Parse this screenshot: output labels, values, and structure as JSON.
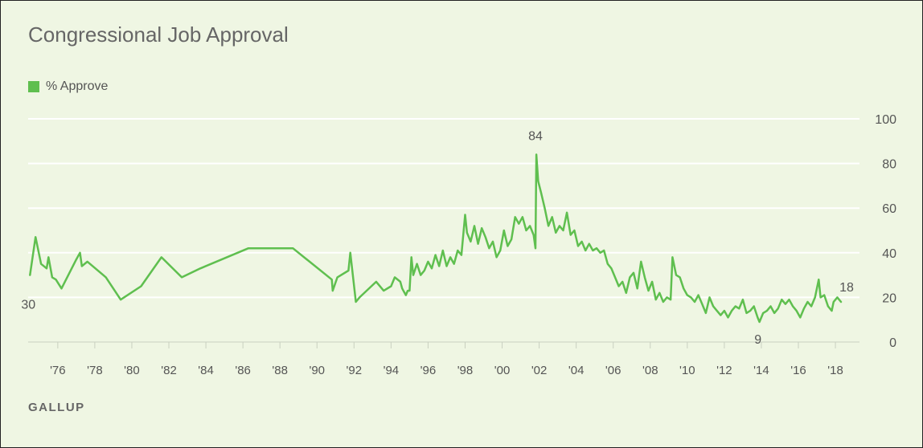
{
  "title": "Congressional Job Approval",
  "footer": "GALLUP",
  "colors": {
    "line": "#5fbf4f",
    "grid": "#ffffff",
    "text": "#555555",
    "background": "#eff6e3"
  },
  "chart_data": {
    "type": "line",
    "title": "Congressional Job Approval",
    "xlabel": "",
    "ylabel": "",
    "ylim": [
      0,
      100
    ],
    "xlim": [
      1974.4,
      2019.3
    ],
    "grid": true,
    "legend_position": "top-left",
    "y_ticks": [
      0,
      20,
      40,
      60,
      80,
      100
    ],
    "y_tick_labels": [
      "0",
      "20",
      "40",
      "60",
      "80",
      "100"
    ],
    "x_ticks": [
      1976,
      1978,
      1980,
      1982,
      1984,
      1986,
      1988,
      1990,
      1992,
      1994,
      1996,
      1998,
      2000,
      2002,
      2004,
      2006,
      2008,
      2010,
      2012,
      2014,
      2016,
      2018
    ],
    "x_tick_labels": [
      "'76",
      "'78",
      "'80",
      "'82",
      "'84",
      "'86",
      "'88",
      "'90",
      "'92",
      "'94",
      "'96",
      "'98",
      "'00",
      "'02",
      "'04",
      "'06",
      "'08",
      "'10",
      "'12",
      "'14",
      "'16",
      "'18"
    ],
    "series": [
      {
        "name": "% Approve",
        "color": "#5fbf4f",
        "x": [
          1974.5,
          1974.8,
          1975.1,
          1975.4,
          1975.5,
          1975.7,
          1975.9,
          1976.2,
          1977.0,
          1977.2,
          1977.3,
          1977.6,
          1978.6,
          1979.4,
          1980.5,
          1981.6,
          1982.7,
          1983.7,
          1986.3,
          1988.7,
          1990.8,
          1990.85,
          1991.1,
          1991.7,
          1991.8,
          1992.1,
          1992.3,
          1993.2,
          1993.6,
          1994.0,
          1994.2,
          1994.5,
          1994.6,
          1994.8,
          1994.9,
          1995.0,
          1995.1,
          1995.2,
          1995.4,
          1995.6,
          1995.8,
          1996.0,
          1996.2,
          1996.4,
          1996.6,
          1996.8,
          1997.0,
          1997.2,
          1997.4,
          1997.6,
          1997.8,
          1998.0,
          1998.1,
          1998.3,
          1998.5,
          1998.7,
          1998.9,
          1999.1,
          1999.3,
          1999.5,
          1999.7,
          1999.9,
          2000.1,
          2000.3,
          2000.5,
          2000.7,
          2000.9,
          2001.1,
          2001.3,
          2001.5,
          2001.7,
          2001.8,
          2001.85,
          2001.95,
          2002.1,
          2002.3,
          2002.5,
          2002.7,
          2002.9,
          2003.1,
          2003.3,
          2003.5,
          2003.7,
          2003.9,
          2004.1,
          2004.3,
          2004.5,
          2004.7,
          2004.9,
          2005.1,
          2005.3,
          2005.5,
          2005.7,
          2005.9,
          2006.1,
          2006.3,
          2006.5,
          2006.7,
          2006.9,
          2007.1,
          2007.3,
          2007.5,
          2007.7,
          2007.9,
          2008.1,
          2008.3,
          2008.5,
          2008.7,
          2008.9,
          2009.1,
          2009.2,
          2009.4,
          2009.6,
          2009.8,
          2010.0,
          2010.2,
          2010.4,
          2010.6,
          2010.8,
          2011.0,
          2011.2,
          2011.4,
          2011.6,
          2011.8,
          2012.0,
          2012.2,
          2012.4,
          2012.6,
          2012.8,
          2013.0,
          2013.2,
          2013.4,
          2013.6,
          2013.8,
          2013.9,
          2014.1,
          2014.3,
          2014.5,
          2014.7,
          2014.9,
          2015.1,
          2015.3,
          2015.5,
          2015.7,
          2015.9,
          2016.1,
          2016.3,
          2016.5,
          2016.7,
          2016.9,
          2017.1,
          2017.2,
          2017.4,
          2017.6,
          2017.8,
          2017.9,
          2018.1,
          2018.3
        ],
        "y": [
          30,
          47,
          35,
          33,
          38,
          29,
          28,
          24,
          37,
          40,
          34,
          36,
          29,
          19,
          25,
          38,
          29,
          33,
          42,
          42,
          28,
          23,
          29,
          32,
          40,
          18,
          20,
          27,
          23,
          25,
          29,
          27,
          24,
          21,
          23,
          23,
          38,
          30,
          35,
          30,
          32,
          36,
          33,
          39,
          34,
          41,
          34,
          38,
          35,
          41,
          39,
          57,
          49,
          45,
          52,
          44,
          51,
          47,
          42,
          45,
          38,
          41,
          50,
          43,
          46,
          56,
          53,
          56,
          50,
          52,
          48,
          42,
          84,
          72,
          67,
          60,
          52,
          56,
          49,
          52,
          50,
          58,
          48,
          50,
          43,
          45,
          41,
          44,
          41,
          42,
          40,
          41,
          35,
          33,
          29,
          25,
          27,
          22,
          29,
          31,
          24,
          36,
          29,
          23,
          27,
          19,
          22,
          18,
          20,
          19,
          38,
          30,
          29,
          24,
          21,
          20,
          18,
          21,
          17,
          13,
          20,
          16,
          14,
          12,
          14,
          11,
          14,
          16,
          15,
          19,
          13,
          14,
          16,
          11,
          9,
          13,
          14,
          16,
          13,
          15,
          19,
          17,
          19,
          16,
          14,
          11,
          15,
          18,
          16,
          20,
          28,
          20,
          21,
          16,
          14,
          18,
          20,
          18
        ]
      }
    ],
    "annotations": [
      {
        "x": 1974.5,
        "y": 30,
        "text": "30"
      },
      {
        "x": 2001.8,
        "y": 84,
        "text": "84"
      },
      {
        "x": 2013.9,
        "y": 9,
        "text": "9"
      },
      {
        "x": 2018.3,
        "y": 18,
        "text": "18"
      }
    ]
  }
}
